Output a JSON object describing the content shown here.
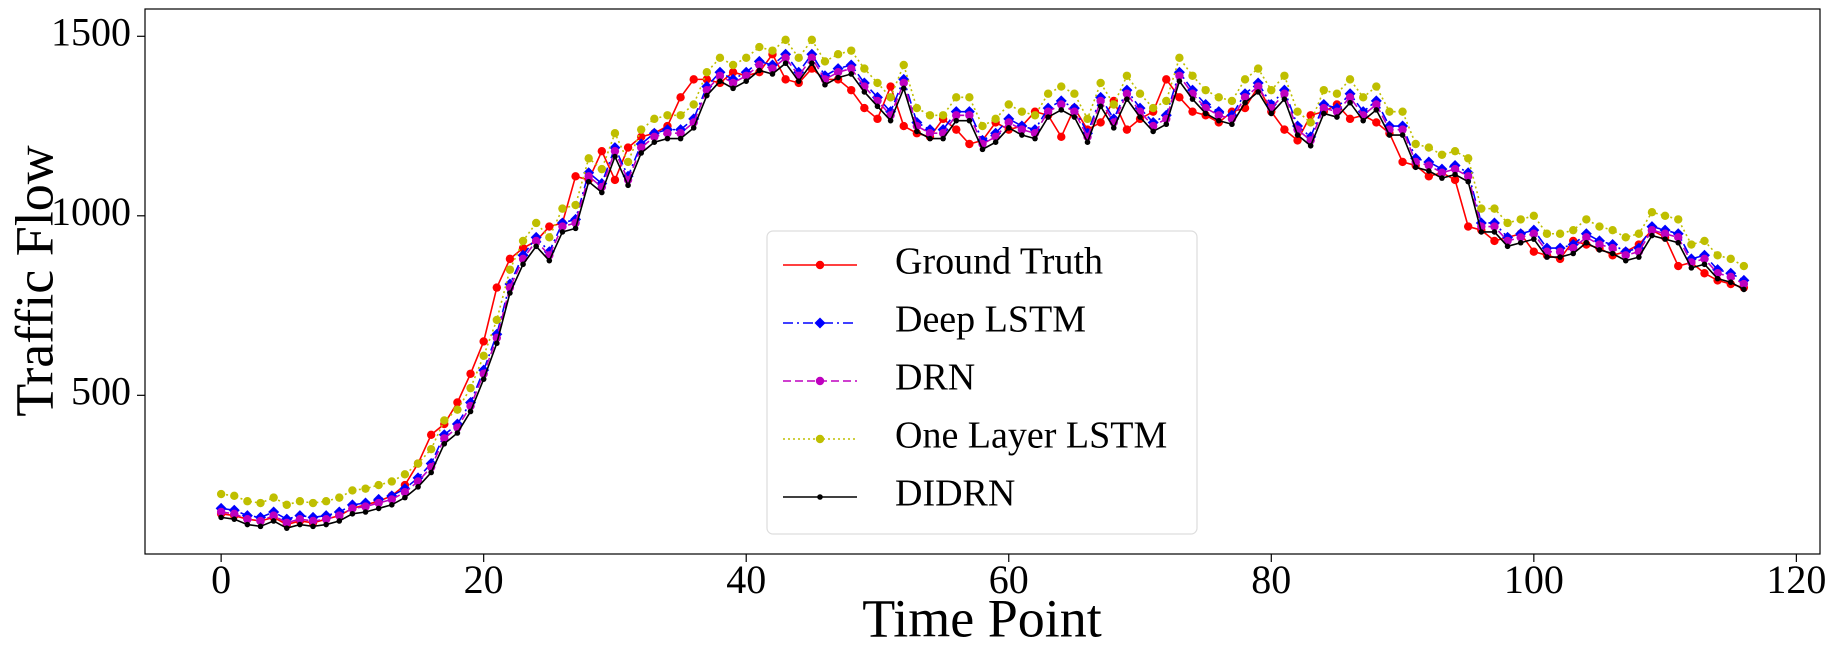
{
  "chart_data": {
    "type": "line",
    "xlabel": "Time Point",
    "ylabel": "Traffic Flow",
    "x": [
      0,
      1,
      2,
      3,
      4,
      5,
      6,
      7,
      8,
      9,
      10,
      11,
      12,
      13,
      14,
      15,
      16,
      17,
      18,
      19,
      20,
      21,
      22,
      23,
      24,
      25,
      26,
      27,
      28,
      29,
      30,
      31,
      32,
      33,
      34,
      35,
      36,
      37,
      38,
      39,
      40,
      41,
      42,
      43,
      44,
      45,
      46,
      47,
      48,
      49,
      50,
      51,
      52,
      53,
      54,
      55,
      56,
      57,
      58,
      59,
      60,
      61,
      62,
      63,
      64,
      65,
      66,
      67,
      68,
      69,
      70,
      71,
      72,
      73,
      74,
      75,
      76,
      77,
      78,
      79,
      80,
      81,
      82,
      83,
      84,
      85,
      86,
      87,
      88,
      89,
      90,
      91,
      92,
      93,
      94,
      95,
      96,
      97,
      98,
      99,
      100,
      101,
      102,
      103,
      104,
      105,
      106,
      107,
      108,
      109,
      110,
      111,
      112,
      113,
      114,
      115,
      116
    ],
    "series": [
      {
        "name": "Ground Truth",
        "color": "#ff0000",
        "linestyle": "solid",
        "marker": "o",
        "values": [
          170,
          165,
          155,
          150,
          160,
          140,
          150,
          145,
          155,
          165,
          185,
          195,
          205,
          220,
          250,
          310,
          390,
          420,
          480,
          560,
          650,
          800,
          880,
          910,
          930,
          970,
          980,
          1110,
          1100,
          1180,
          1100,
          1190,
          1220,
          1230,
          1250,
          1330,
          1380,
          1380,
          1370,
          1400,
          1390,
          1400,
          1450,
          1380,
          1370,
          1410,
          1380,
          1380,
          1350,
          1300,
          1270,
          1360,
          1250,
          1230,
          1220,
          1270,
          1240,
          1200,
          1210,
          1260,
          1240,
          1250,
          1290,
          1280,
          1220,
          1300,
          1240,
          1260,
          1320,
          1240,
          1270,
          1290,
          1380,
          1330,
          1290,
          1280,
          1260,
          1290,
          1300,
          1360,
          1290,
          1240,
          1210,
          1280,
          1290,
          1310,
          1270,
          1280,
          1260,
          1230,
          1150,
          1140,
          1110,
          1120,
          1100,
          970,
          960,
          930,
          940,
          950,
          900,
          890,
          880,
          930,
          920,
          910,
          890,
          900,
          920,
          960,
          940,
          860,
          870,
          840,
          820,
          810,
          800
        ]
      },
      {
        "name": "Deep LSTM",
        "color": "#0000ff",
        "linestyle": "dashdot",
        "marker": "D",
        "values": [
          185,
          180,
          165,
          160,
          175,
          155,
          165,
          160,
          165,
          175,
          195,
          200,
          210,
          220,
          240,
          270,
          310,
          390,
          420,
          480,
          570,
          670,
          810,
          890,
          940,
          900,
          980,
          990,
          1120,
          1090,
          1190,
          1110,
          1200,
          1230,
          1240,
          1240,
          1270,
          1360,
          1400,
          1380,
          1400,
          1430,
          1420,
          1450,
          1400,
          1450,
          1390,
          1410,
          1420,
          1370,
          1330,
          1290,
          1380,
          1260,
          1240,
          1240,
          1290,
          1290,
          1210,
          1230,
          1270,
          1250,
          1240,
          1300,
          1320,
          1300,
          1230,
          1330,
          1270,
          1350,
          1300,
          1260,
          1280,
          1400,
          1350,
          1310,
          1290,
          1280,
          1340,
          1370,
          1310,
          1350,
          1250,
          1220,
          1310,
          1300,
          1340,
          1290,
          1320,
          1250,
          1250,
          1160,
          1150,
          1130,
          1140,
          1120,
          980,
          980,
          940,
          950,
          960,
          910,
          910,
          920,
          950,
          930,
          920,
          900,
          910,
          970,
          960,
          950,
          880,
          890,
          850,
          840,
          820
        ]
      },
      {
        "name": "DRN",
        "color": "#bf00bf",
        "linestyle": "dashed",
        "marker": "o",
        "values": [
          175,
          170,
          155,
          150,
          165,
          145,
          155,
          150,
          155,
          165,
          185,
          190,
          200,
          210,
          230,
          260,
          300,
          380,
          410,
          470,
          560,
          660,
          800,
          880,
          930,
          890,
          970,
          980,
          1110,
          1080,
          1180,
          1100,
          1190,
          1220,
          1230,
          1230,
          1260,
          1350,
          1390,
          1370,
          1390,
          1420,
          1410,
          1440,
          1390,
          1440,
          1380,
          1400,
          1410,
          1360,
          1320,
          1280,
          1370,
          1250,
          1230,
          1230,
          1280,
          1280,
          1200,
          1220,
          1260,
          1240,
          1230,
          1290,
          1310,
          1290,
          1220,
          1320,
          1260,
          1340,
          1290,
          1250,
          1270,
          1390,
          1340,
          1300,
          1280,
          1270,
          1330,
          1360,
          1300,
          1340,
          1240,
          1210,
          1300,
          1290,
          1330,
          1280,
          1310,
          1240,
          1240,
          1150,
          1140,
          1120,
          1130,
          1110,
          970,
          970,
          930,
          940,
          950,
          900,
          900,
          910,
          940,
          920,
          910,
          890,
          900,
          960,
          950,
          940,
          870,
          880,
          840,
          830,
          810
        ]
      },
      {
        "name": "One Layer LSTM",
        "color": "#bfbf00",
        "linestyle": "dotted",
        "marker": "o",
        "values": [
          225,
          220,
          205,
          200,
          215,
          195,
          205,
          200,
          205,
          215,
          235,
          240,
          250,
          260,
          280,
          310,
          350,
          430,
          460,
          520,
          610,
          710,
          850,
          930,
          980,
          940,
          1020,
          1030,
          1160,
          1130,
          1230,
          1150,
          1240,
          1270,
          1280,
          1280,
          1310,
          1400,
          1440,
          1420,
          1440,
          1470,
          1460,
          1490,
          1440,
          1490,
          1430,
          1450,
          1460,
          1410,
          1370,
          1330,
          1420,
          1300,
          1280,
          1280,
          1330,
          1330,
          1250,
          1270,
          1310,
          1290,
          1280,
          1340,
          1360,
          1340,
          1270,
          1370,
          1310,
          1390,
          1340,
          1300,
          1320,
          1440,
          1390,
          1350,
          1330,
          1320,
          1380,
          1410,
          1350,
          1390,
          1290,
          1260,
          1350,
          1340,
          1380,
          1330,
          1360,
          1290,
          1290,
          1200,
          1190,
          1170,
          1180,
          1160,
          1020,
          1020,
          980,
          990,
          1000,
          950,
          950,
          960,
          990,
          970,
          960,
          940,
          950,
          1010,
          1000,
          990,
          920,
          930,
          890,
          880,
          860
        ]
      },
      {
        "name": "DIDRN",
        "color": "#000000",
        "linestyle": "solid",
        "marker": ".",
        "values": [
          160,
          155,
          140,
          135,
          150,
          130,
          140,
          135,
          140,
          150,
          170,
          175,
          185,
          195,
          215,
          245,
          285,
          365,
          395,
          455,
          545,
          645,
          785,
          865,
          915,
          875,
          955,
          965,
          1095,
          1065,
          1165,
          1085,
          1175,
          1205,
          1215,
          1215,
          1245,
          1335,
          1375,
          1355,
          1375,
          1405,
          1395,
          1425,
          1375,
          1425,
          1365,
          1385,
          1395,
          1345,
          1305,
          1265,
          1355,
          1235,
          1215,
          1215,
          1265,
          1265,
          1185,
          1205,
          1245,
          1225,
          1215,
          1275,
          1295,
          1275,
          1205,
          1305,
          1245,
          1325,
          1275,
          1235,
          1255,
          1375,
          1325,
          1285,
          1265,
          1255,
          1315,
          1345,
          1285,
          1325,
          1225,
          1195,
          1285,
          1275,
          1315,
          1265,
          1295,
          1225,
          1225,
          1135,
          1125,
          1105,
          1115,
          1095,
          955,
          955,
          915,
          925,
          935,
          885,
          885,
          895,
          925,
          905,
          895,
          875,
          885,
          945,
          935,
          925,
          855,
          865,
          825,
          815,
          795
        ]
      }
    ],
    "xlim": [
      -5.8,
      121.8
    ],
    "ylim": [
      58,
      1576
    ],
    "xticks": [
      0,
      20,
      40,
      60,
      80,
      100,
      120
    ],
    "yticks": [
      500,
      1000,
      1500
    ],
    "grid": false,
    "legend": "best"
  }
}
